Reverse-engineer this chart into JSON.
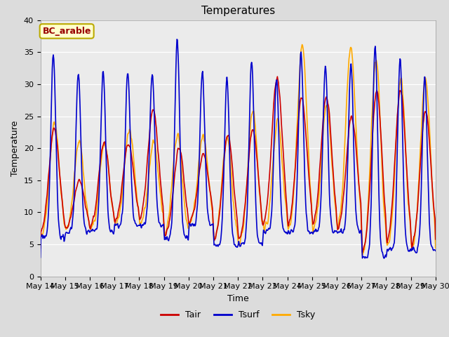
{
  "title": "Temperatures",
  "xlabel": "Time",
  "ylabel": "Temperature",
  "ylim": [
    0,
    40
  ],
  "yticks": [
    0,
    5,
    10,
    15,
    20,
    25,
    30,
    35,
    40
  ],
  "line_colors": {
    "Tair": "#cc0000",
    "Tsurf": "#0000cc",
    "Tsky": "#ffaa00"
  },
  "line_widths": {
    "Tair": 1.2,
    "Tsurf": 1.2,
    "Tsky": 1.2
  },
  "bg_color": "#dcdcdc",
  "plot_bg_color": "#ebebeb",
  "annotation_text": "BC_arable",
  "annotation_color": "#990000",
  "annotation_bg": "#ffffcc",
  "annotation_border": "#bbaa00",
  "n_days": 16,
  "start_day": 14,
  "title_fontsize": 11,
  "axis_label_fontsize": 9,
  "tick_fontsize": 8,
  "legend_fontsize": 9
}
